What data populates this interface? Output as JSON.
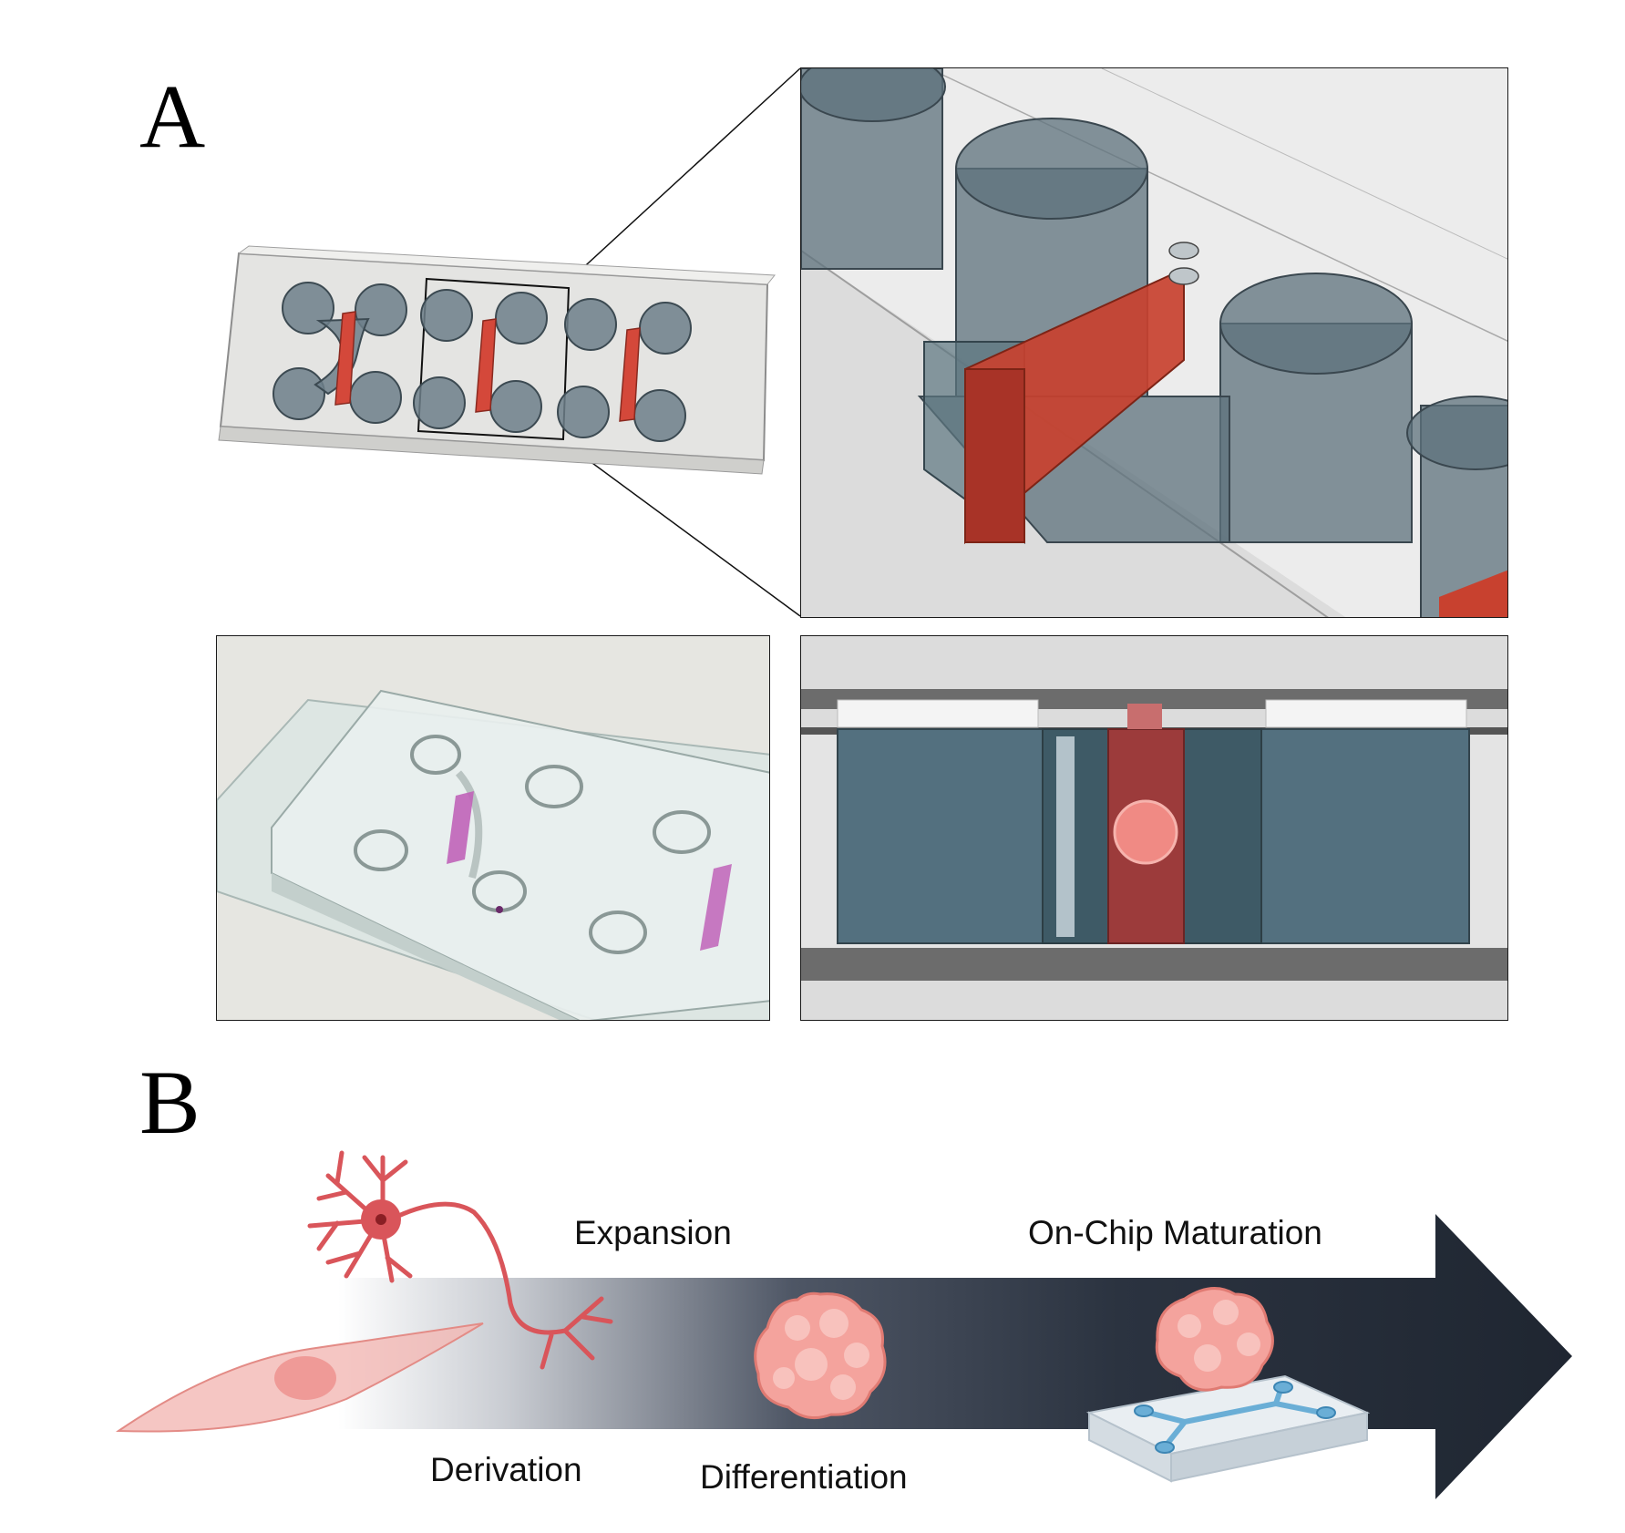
{
  "panel_a": {
    "label": "A"
  },
  "panel_b": {
    "label": "B",
    "stages": {
      "expansion": "Expansion",
      "maturation": "On-Chip Maturation",
      "derivation": "Derivation",
      "differentiation": "Differentiation"
    }
  },
  "colors": {
    "chamber_red": "#c8412f",
    "well_blue_gray": "#56707d",
    "arrow_dark": "#222a36",
    "cell_pink": "#f0a6a0",
    "neuron_red": "#d9555a",
    "organoid_pink": "#f4a39d",
    "chip_channel_blue": "#6aaed6"
  },
  "icons": [
    "chip-3d-render",
    "chip-zoom-render",
    "chip-photo",
    "chip-cross-section",
    "fibroblast-cell-icon",
    "neuron-icon",
    "organoid-icon",
    "organoid-on-chip-icon",
    "progression-arrow"
  ]
}
